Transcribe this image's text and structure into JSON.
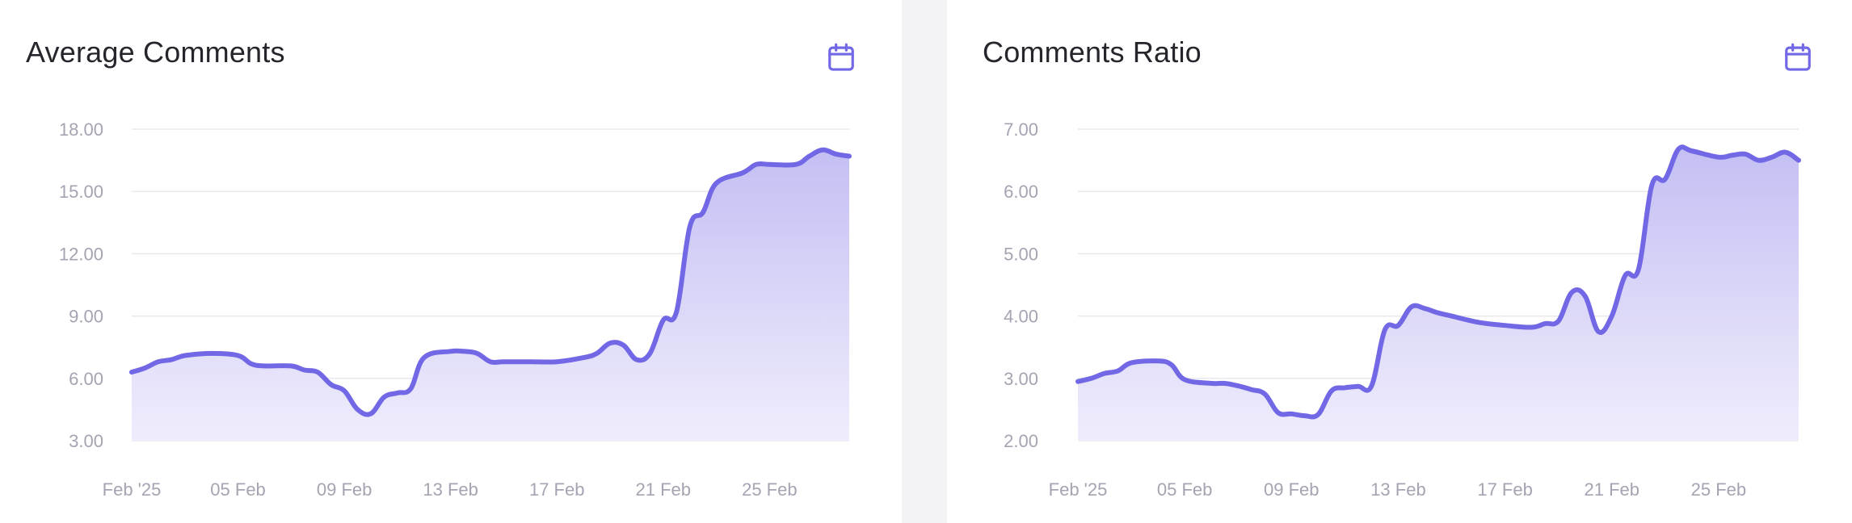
{
  "panels": [
    {
      "title": "Average Comments",
      "calendar_icon": "calendar-icon"
    },
    {
      "title": "Comments Ratio",
      "calendar_icon": "calendar-icon"
    }
  ],
  "colors": {
    "line": "#7268e6",
    "fill_top": "#c4bff3",
    "fill_bottom": "#efedfc",
    "grid": "#e8e8ee",
    "tick": "#a4a4b2"
  },
  "chart_data": [
    {
      "type": "area",
      "title": "Average Comments",
      "xlabel": "",
      "ylabel": "",
      "x_tick_labels": [
        "Feb '25",
        "05 Feb",
        "09 Feb",
        "13 Feb",
        "17 Feb",
        "21 Feb",
        "25 Feb"
      ],
      "x_tick_index": [
        1,
        5,
        9,
        13,
        17,
        21,
        25
      ],
      "y_tick_labels": [
        "3.00",
        "6.00",
        "9.00",
        "12.00",
        "15.00",
        "18.00"
      ],
      "ylim": [
        3,
        18
      ],
      "x_index_range": [
        1,
        28
      ],
      "grid": true,
      "series": [
        {
          "x_index": [
            1,
            1.5,
            2,
            2.5,
            3,
            4,
            5,
            5.5,
            6,
            7,
            7.5,
            8,
            8.5,
            9,
            9.5,
            10,
            10.5,
            11,
            11.5,
            12,
            13,
            13.5,
            14,
            14.5,
            15,
            16,
            17,
            18,
            18.5,
            19,
            19.5,
            20,
            20.5,
            21,
            21.5,
            22,
            22.5,
            23,
            24,
            24.5,
            25,
            26,
            26.5,
            27,
            27.5,
            28
          ],
          "values": [
            6.3,
            6.5,
            6.8,
            6.9,
            7.1,
            7.2,
            7.1,
            6.7,
            6.6,
            6.6,
            6.4,
            6.3,
            5.7,
            5.4,
            4.5,
            4.3,
            5.1,
            5.3,
            5.5,
            7.0,
            7.3,
            7.3,
            7.2,
            6.8,
            6.8,
            6.8,
            6.8,
            7.0,
            7.2,
            7.7,
            7.6,
            6.9,
            7.2,
            8.8,
            9.2,
            13.3,
            14.0,
            15.4,
            15.9,
            16.3,
            16.3,
            16.3,
            16.7,
            17.0,
            16.8,
            16.7
          ]
        }
      ]
    },
    {
      "type": "area",
      "title": "Comments Ratio",
      "xlabel": "",
      "ylabel": "",
      "x_tick_labels": [
        "Feb '25",
        "05 Feb",
        "09 Feb",
        "13 Feb",
        "17 Feb",
        "21 Feb",
        "25 Feb"
      ],
      "x_tick_index": [
        1,
        5,
        9,
        13,
        17,
        21,
        25
      ],
      "y_tick_labels": [
        "2.00",
        "3.00",
        "4.00",
        "5.00",
        "6.00",
        "7.00"
      ],
      "ylim": [
        2,
        7
      ],
      "x_index_range": [
        1,
        28
      ],
      "grid": true,
      "series": [
        {
          "x_index": [
            1,
            1.5,
            2,
            2.5,
            3,
            4,
            4.5,
            5,
            6,
            6.5,
            7,
            7.5,
            8,
            8.5,
            9,
            9.5,
            10,
            10.5,
            11,
            11.5,
            12,
            12.5,
            13,
            13.5,
            14,
            14.5,
            15,
            16,
            17,
            18,
            18.5,
            19,
            19.5,
            20,
            20.5,
            21,
            21.5,
            22,
            22.5,
            23,
            23.5,
            24,
            25,
            25.5,
            26,
            26.5,
            27,
            27.5,
            28
          ],
          "values": [
            2.95,
            3.0,
            3.08,
            3.12,
            3.25,
            3.28,
            3.22,
            2.98,
            2.92,
            2.92,
            2.88,
            2.82,
            2.75,
            2.45,
            2.43,
            2.4,
            2.42,
            2.8,
            2.85,
            2.87,
            2.88,
            3.78,
            3.85,
            4.15,
            4.12,
            4.05,
            4.0,
            3.9,
            3.85,
            3.82,
            3.88,
            3.92,
            4.38,
            4.32,
            3.75,
            4.0,
            4.65,
            4.75,
            6.1,
            6.2,
            6.68,
            6.65,
            6.55,
            6.58,
            6.6,
            6.5,
            6.55,
            6.63,
            6.5
          ]
        }
      ]
    }
  ]
}
